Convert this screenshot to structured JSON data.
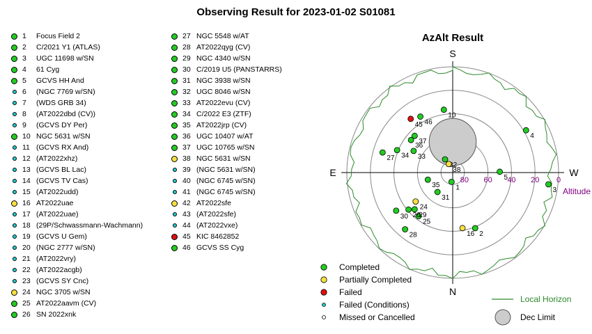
{
  "page": {
    "title": "Observing Result for 2023-01-02  S01081"
  },
  "status_colors": {
    "completed": "#22cc22",
    "partial": "#f5e042",
    "failed": "#dd1111",
    "failed_conditions": "#22cccc",
    "missed": "#ffffff"
  },
  "targets": [
    {
      "id": "1",
      "name": "Focus Field 2",
      "status": "completed"
    },
    {
      "id": "2",
      "name": "C/2021 Y1 (ATLAS)",
      "status": "completed"
    },
    {
      "id": "3",
      "name": "UGC 11698 w/SN",
      "status": "completed"
    },
    {
      "id": "4",
      "name": "61 Cyg",
      "status": "completed"
    },
    {
      "id": "5",
      "name": "GCVS HH And",
      "status": "completed"
    },
    {
      "id": "6",
      "name": "(NGC 7769 w/SN)",
      "status": "failed_conditions"
    },
    {
      "id": "7",
      "name": "(WDS GRB 34)",
      "status": "failed_conditions"
    },
    {
      "id": "8",
      "name": "(AT2022dbd (CV))",
      "status": "failed_conditions"
    },
    {
      "id": "9",
      "name": "(GCVS DY Per)",
      "status": "failed_conditions"
    },
    {
      "id": "10",
      "name": "NGC 5631 w/SN",
      "status": "completed"
    },
    {
      "id": "11",
      "name": "(GCVS RX And)",
      "status": "failed_conditions"
    },
    {
      "id": "12",
      "name": "(AT2022xhz)",
      "status": "failed_conditions"
    },
    {
      "id": "13",
      "name": "(GCVS BL Lac)",
      "status": "failed_conditions"
    },
    {
      "id": "14",
      "name": "(GCVS TV Cas)",
      "status": "failed_conditions"
    },
    {
      "id": "15",
      "name": "(AT2022udd)",
      "status": "failed_conditions"
    },
    {
      "id": "16",
      "name": "AT2022uae",
      "status": "partial"
    },
    {
      "id": "17",
      "name": "(AT2022uae)",
      "status": "failed_conditions"
    },
    {
      "id": "18",
      "name": "(29P/Schwassmann-Wachmann)",
      "status": "failed_conditions"
    },
    {
      "id": "19",
      "name": "(GCVS U Gem)",
      "status": "failed_conditions"
    },
    {
      "id": "20",
      "name": "(NGC 2777 w/SN)",
      "status": "failed_conditions"
    },
    {
      "id": "21",
      "name": "(AT2022vry)",
      "status": "failed_conditions"
    },
    {
      "id": "22",
      "name": "(AT2022acgb)",
      "status": "failed_conditions"
    },
    {
      "id": "23",
      "name": "(GCVS SY Cnc)",
      "status": "failed_conditions"
    },
    {
      "id": "24",
      "name": "NGC 3705 w/SN",
      "status": "partial"
    },
    {
      "id": "25",
      "name": "AT2022aavm (CV)",
      "status": "completed"
    },
    {
      "id": "26",
      "name": "SN 2022xnk",
      "status": "completed"
    },
    {
      "id": "27",
      "name": "NGC 5548 w/AT",
      "status": "completed"
    },
    {
      "id": "28",
      "name": "AT2022qyg (CV)",
      "status": "completed"
    },
    {
      "id": "29",
      "name": "NGC 4340 w/SN",
      "status": "completed"
    },
    {
      "id": "30",
      "name": "C/2019 U5 (PANSTARRS)",
      "status": "completed"
    },
    {
      "id": "31",
      "name": "NGC 3938 w/SN",
      "status": "completed"
    },
    {
      "id": "32",
      "name": "UGC 8046 w/SN",
      "status": "completed"
    },
    {
      "id": "33",
      "name": "AT2022evu (CV)",
      "status": "completed"
    },
    {
      "id": "34",
      "name": "C/2022 E3 (ZTF)",
      "status": "completed"
    },
    {
      "id": "35",
      "name": "AT2022jrp (CV)",
      "status": "completed"
    },
    {
      "id": "36",
      "name": "UGC 10407 w/AT",
      "status": "completed"
    },
    {
      "id": "37",
      "name": "UGC 10765 w/SN",
      "status": "completed"
    },
    {
      "id": "38",
      "name": "NGC 5631 w/SN",
      "status": "partial"
    },
    {
      "id": "39",
      "name": "(NGC 5631 w/SN)",
      "status": "failed_conditions"
    },
    {
      "id": "40",
      "name": "(NGC 6745 w/SN)",
      "status": "failed_conditions"
    },
    {
      "id": "41",
      "name": "(NGC 6745 w/SN)",
      "status": "failed_conditions"
    },
    {
      "id": "42",
      "name": "AT2022sfe",
      "status": "partial"
    },
    {
      "id": "43",
      "name": "(AT2022sfe)",
      "status": "failed_conditions"
    },
    {
      "id": "44",
      "name": "(AT2022vxe)",
      "status": "failed_conditions"
    },
    {
      "id": "45",
      "name": "KIC 8462852",
      "status": "failed"
    },
    {
      "id": "46",
      "name": "GCVS SS Cyg",
      "status": "completed"
    }
  ],
  "chart_data": {
    "type": "scatter",
    "projection": "polar-azimuth-altitude",
    "title": "AzAlt Result",
    "direction_labels": {
      "top": "S",
      "bottom": "N",
      "left": "E",
      "right": "W"
    },
    "axis_label": "Altitude",
    "altitude_rings": [
      0,
      20,
      40,
      60,
      80
    ],
    "altitude_ticks": [
      "80",
      "60",
      "40",
      "20",
      "0"
    ],
    "grid": true,
    "points": [
      {
        "label": "1",
        "az": 173,
        "alt": 82,
        "status": "completed"
      },
      {
        "label": "2",
        "az": 202,
        "alt": 39,
        "status": "completed"
      },
      {
        "label": "3",
        "az": 263,
        "alt": 8,
        "status": "completed"
      },
      {
        "label": "4",
        "az": 300,
        "alt": 18,
        "status": "completed"
      },
      {
        "label": "5",
        "az": 271,
        "alt": 50,
        "status": "completed"
      },
      {
        "label": "10",
        "az": 8,
        "alt": 36,
        "status": "completed"
      },
      {
        "label": "16",
        "az": 190,
        "alt": 42,
        "status": "partial"
      },
      {
        "label": "24",
        "az": 128,
        "alt": 50,
        "status": "partial"
      },
      {
        "label": "25",
        "az": 142,
        "alt": 43,
        "status": "completed"
      },
      {
        "label": "26",
        "az": 130,
        "alt": 41,
        "status": "completed"
      },
      {
        "label": "27",
        "az": 74,
        "alt": 28,
        "status": "completed"
      },
      {
        "label": "28",
        "az": 140,
        "alt": 27,
        "status": "completed"
      },
      {
        "label": "29",
        "az": 134,
        "alt": 45,
        "status": "completed"
      },
      {
        "label": "30",
        "az": 124,
        "alt": 32,
        "status": "completed"
      },
      {
        "label": "31",
        "az": 142,
        "alt": 69,
        "status": "completed"
      },
      {
        "label": "32",
        "az": 30,
        "alt": 77,
        "status": "completed"
      },
      {
        "label": "33",
        "az": 61,
        "alt": 52,
        "status": "completed"
      },
      {
        "label": "34",
        "az": 68,
        "alt": 39,
        "status": "completed"
      },
      {
        "label": "35",
        "az": 106,
        "alt": 68,
        "status": "completed"
      },
      {
        "label": "36",
        "az": 52,
        "alt": 45,
        "status": "completed"
      },
      {
        "label": "37",
        "az": 46,
        "alt": 45,
        "status": "completed"
      },
      {
        "label": "38",
        "az": 25,
        "alt": 82,
        "status": "partial"
      },
      {
        "label": "45",
        "az": 38,
        "alt": 32,
        "status": "failed"
      },
      {
        "label": "46",
        "az": 30,
        "alt": 35,
        "status": "completed"
      }
    ],
    "legend": {
      "placement": "bottom",
      "items": [
        {
          "label": "Completed",
          "status": "completed"
        },
        {
          "label": "Partially Completed",
          "status": "partial"
        },
        {
          "label": "Failed",
          "status": "failed"
        },
        {
          "label": "Failed (Conditions)",
          "status": "failed_conditions"
        },
        {
          "label": "Missed or Cancelled",
          "status": "missed"
        },
        {
          "label": "Local Horizon",
          "kind": "line",
          "color": "#2a8a2a"
        },
        {
          "label": "Dec Limit",
          "kind": "circle",
          "color": "#cccccc"
        }
      ]
    },
    "dec_limit": {
      "az": 0,
      "alt": 64,
      "radius_deg": 20
    },
    "colors": {
      "ring": "#888888",
      "axis_text": "#800080",
      "horizon": "#2a8a2a",
      "dec_limit_fill": "#cccccc"
    }
  }
}
